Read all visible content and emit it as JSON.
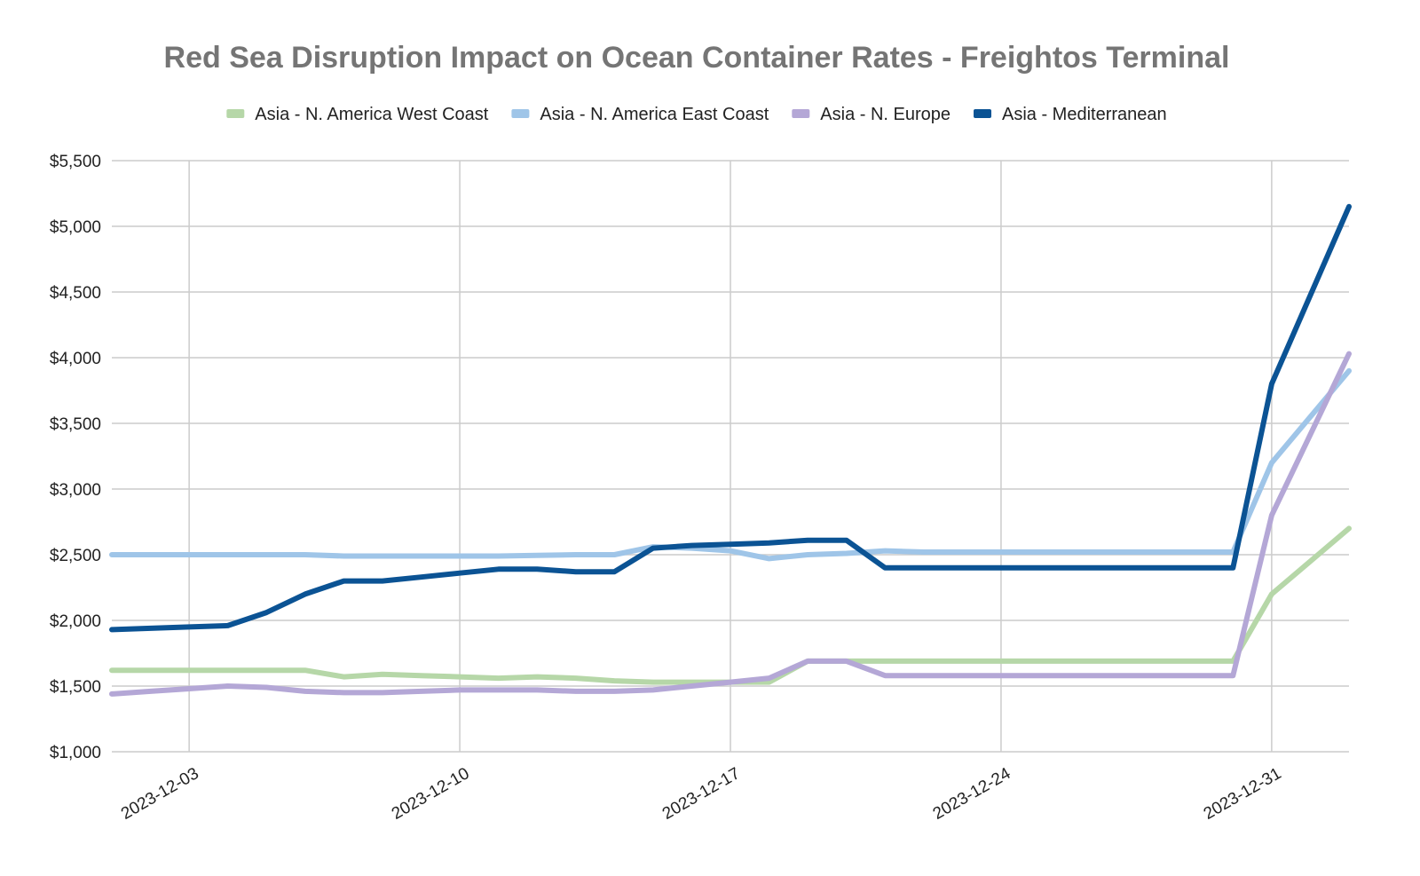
{
  "chart_data": {
    "type": "line",
    "title": "Red Sea Disruption Impact on Ocean Container Rates - Freightos Terminal",
    "xlabel": "",
    "ylabel": "",
    "ylim": [
      1000,
      5500
    ],
    "y_ticks": [
      "$1,000",
      "$1,500",
      "$2,000",
      "$2,500",
      "$3,000",
      "$3,500",
      "$4,000",
      "$4,500",
      "$5,000",
      "$5,500"
    ],
    "y_tick_values": [
      1000,
      1500,
      2000,
      2500,
      3000,
      3500,
      4000,
      4500,
      5000,
      5500
    ],
    "x_tick_labels": [
      "2023-12-03",
      "2023-12-10",
      "2023-12-17",
      "2023-12-24",
      "2023-12-31"
    ],
    "xlim": [
      "2023-12-01",
      "2024-01-02"
    ],
    "grid": true,
    "legend_position": "top",
    "x": [
      "2023-12-01",
      "2023-12-02",
      "2023-12-03",
      "2023-12-04",
      "2023-12-05",
      "2023-12-06",
      "2023-12-07",
      "2023-12-08",
      "2023-12-09",
      "2023-12-10",
      "2023-12-11",
      "2023-12-12",
      "2023-12-13",
      "2023-12-14",
      "2023-12-15",
      "2023-12-16",
      "2023-12-17",
      "2023-12-18",
      "2023-12-19",
      "2023-12-20",
      "2023-12-21",
      "2023-12-22",
      "2023-12-23",
      "2023-12-24",
      "2023-12-25",
      "2023-12-26",
      "2023-12-27",
      "2023-12-28",
      "2023-12-29",
      "2023-12-30",
      "2023-12-31",
      "2024-01-01",
      "2024-01-02"
    ],
    "series": [
      {
        "name": "Asia - N. America West Coast",
        "color": "#b6d7a8",
        "values": [
          1620,
          1620,
          1620,
          1620,
          1620,
          1620,
          1570,
          1590,
          1580,
          1570,
          1560,
          1570,
          1560,
          1540,
          1530,
          1530,
          1530,
          1530,
          1690,
          1690,
          1690,
          1690,
          1690,
          1690,
          1690,
          1690,
          1690,
          1690,
          1690,
          1690,
          2200,
          null,
          2700
        ]
      },
      {
        "name": "Asia - N. America East Coast",
        "color": "#9fc5e8",
        "values": [
          2500,
          2500,
          2500,
          2500,
          2500,
          2500,
          2490,
          2490,
          2490,
          2490,
          2490,
          2495,
          2500,
          2500,
          2560,
          2550,
          2530,
          2470,
          2500,
          2510,
          2530,
          2520,
          2520,
          2520,
          2520,
          2520,
          2520,
          2520,
          2520,
          2520,
          3200,
          null,
          3900
        ]
      },
      {
        "name": "Asia - N. Europe",
        "color": "#b4a7d6",
        "values": [
          1440,
          1460,
          1480,
          1500,
          1490,
          1460,
          1450,
          1450,
          1460,
          1470,
          1470,
          1470,
          1460,
          1460,
          1470,
          1500,
          1530,
          1560,
          1690,
          1690,
          1580,
          1580,
          1580,
          1580,
          1580,
          1580,
          1580,
          1580,
          1580,
          1580,
          2800,
          null,
          4030
        ]
      },
      {
        "name": "Asia - Mediterranean",
        "color": "#0b5394",
        "values": [
          1930,
          1940,
          1950,
          1960,
          2060,
          2200,
          2300,
          2300,
          2330,
          2360,
          2390,
          2390,
          2370,
          2370,
          2550,
          2570,
          2580,
          2590,
          2610,
          2610,
          2400,
          2400,
          2400,
          2400,
          2400,
          2400,
          2400,
          2400,
          2400,
          2400,
          3800,
          null,
          5150
        ]
      }
    ]
  }
}
